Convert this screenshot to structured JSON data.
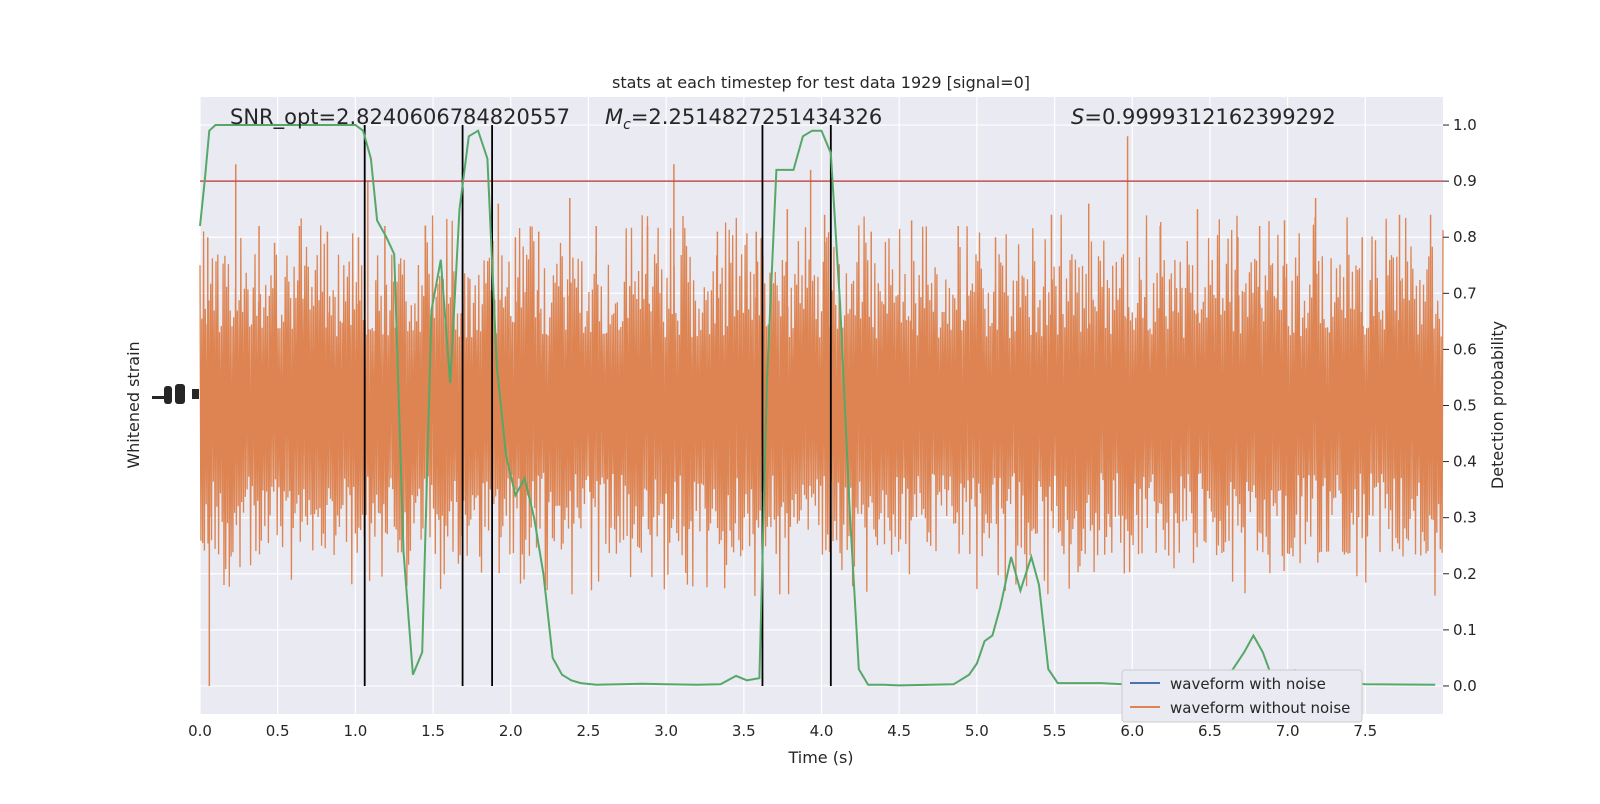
{
  "chart_data": {
    "type": "line",
    "title": "stats at each timestep for test data 1929 [signal=0]",
    "xlabel": "Time (s)",
    "ylabel_left": "Whitened strain",
    "ylabel_right": "Detection probability",
    "xlim": [
      0.0,
      8.0
    ],
    "ylim_right": [
      -0.05,
      1.05
    ],
    "x_ticks": [
      "0.0",
      "0.5",
      "1.0",
      "1.5",
      "2.0",
      "2.5",
      "3.0",
      "3.5",
      "4.0",
      "4.5",
      "5.0",
      "5.5",
      "6.0",
      "6.5",
      "7.0",
      "7.5"
    ],
    "y_ticks_right": [
      "0.0",
      "0.1",
      "0.2",
      "0.3",
      "0.4",
      "0.5",
      "0.6",
      "0.7",
      "0.8",
      "0.9",
      "1.0"
    ],
    "grid": true,
    "annotations": {
      "snr": "SNR_opt=2.8240606784820557",
      "mc_symbol": "M",
      "mc_sub": "c",
      "mc_value": "=2.2514827251434326",
      "s_symbol": "S",
      "s_value": "=0.9999312162399292"
    },
    "legend": {
      "position": "lower-right",
      "entries": [
        {
          "label": "waveform with noise",
          "color": "#4c72b0"
        },
        {
          "label": "waveform without noise",
          "color": "#dd8452"
        }
      ]
    },
    "colors": {
      "noise_waveform": "#dd8452",
      "probability": "#55a868",
      "threshold": "#c44e52",
      "markers": "#000000",
      "axes_bg": "#eaeaf2",
      "grid": "#ffffff"
    },
    "threshold": 0.9,
    "vertical_markers": [
      1.06,
      1.69,
      1.88,
      3.62,
      4.06
    ],
    "series": [
      {
        "name": "detection probability",
        "x": [
          0.0,
          0.03,
          0.06,
          0.1,
          0.2,
          0.4,
          0.6,
          0.8,
          0.95,
          1.0,
          1.05,
          1.1,
          1.14,
          1.2,
          1.25,
          1.31,
          1.37,
          1.43,
          1.49,
          1.55,
          1.61,
          1.67,
          1.73,
          1.79,
          1.85,
          1.91,
          1.97,
          2.03,
          2.09,
          2.15,
          2.21,
          2.27,
          2.33,
          2.39,
          2.45,
          2.55,
          2.7,
          2.85,
          3.0,
          3.2,
          3.35,
          3.45,
          3.52,
          3.6,
          3.65,
          3.71,
          3.82,
          3.88,
          3.94,
          4.0,
          4.06,
          4.12,
          4.18,
          4.24,
          4.3,
          4.4,
          4.5,
          4.7,
          4.85,
          4.95,
          5.0,
          5.05,
          5.1,
          5.15,
          5.22,
          5.28,
          5.35,
          5.4,
          5.46,
          5.52,
          5.6,
          5.8,
          6.0,
          6.3,
          6.6,
          6.72,
          6.78,
          6.84,
          6.9,
          6.95,
          7.05,
          7.2,
          7.5,
          7.95
        ],
        "values": [
          0.82,
          0.9,
          0.99,
          1.0,
          1.0,
          1.0,
          1.0,
          1.0,
          1.0,
          1.0,
          0.99,
          0.94,
          0.83,
          0.8,
          0.77,
          0.24,
          0.02,
          0.06,
          0.67,
          0.76,
          0.54,
          0.85,
          0.98,
          0.99,
          0.94,
          0.57,
          0.41,
          0.34,
          0.37,
          0.3,
          0.2,
          0.05,
          0.02,
          0.01,
          0.005,
          0.002,
          0.003,
          0.004,
          0.003,
          0.002,
          0.003,
          0.018,
          0.01,
          0.014,
          0.55,
          0.92,
          0.92,
          0.98,
          0.99,
          0.99,
          0.95,
          0.68,
          0.32,
          0.03,
          0.002,
          0.002,
          0.001,
          0.002,
          0.003,
          0.02,
          0.04,
          0.08,
          0.09,
          0.14,
          0.23,
          0.17,
          0.23,
          0.18,
          0.03,
          0.005,
          0.005,
          0.005,
          0.002,
          0.002,
          0.01,
          0.06,
          0.09,
          0.06,
          0.015,
          0.02,
          0.028,
          0.01,
          0.003,
          0.002
        ]
      },
      {
        "name": "waveform without noise",
        "description": "dense noise trace, vertical spikes in probability-axis units",
        "x": [
          0.05,
          0.23,
          0.38,
          0.48,
          0.64,
          0.82,
          1.02,
          1.08,
          1.19,
          1.45,
          1.69,
          1.92,
          2.03,
          2.18,
          2.38,
          2.55,
          2.88,
          3.05,
          3.33,
          3.58,
          3.78,
          3.93,
          4.02,
          4.32,
          4.58,
          4.88,
          5.12,
          5.48,
          5.72,
          5.97,
          6.18,
          6.42,
          6.68,
          6.82,
          6.98,
          7.18,
          7.48,
          7.72,
          7.92
        ],
        "values": [
          0.8,
          0.93,
          0.82,
          0.79,
          0.82,
          0.81,
          0.8,
          0.9,
          0.82,
          0.82,
          0.85,
          0.86,
          0.8,
          0.81,
          0.87,
          0.82,
          0.82,
          0.93,
          0.81,
          0.81,
          0.85,
          0.92,
          0.84,
          0.81,
          0.83,
          0.82,
          0.8,
          0.84,
          0.86,
          0.98,
          0.82,
          0.85,
          0.8,
          0.82,
          0.83,
          0.87,
          0.8,
          0.84,
          0.84
        ]
      }
    ]
  }
}
